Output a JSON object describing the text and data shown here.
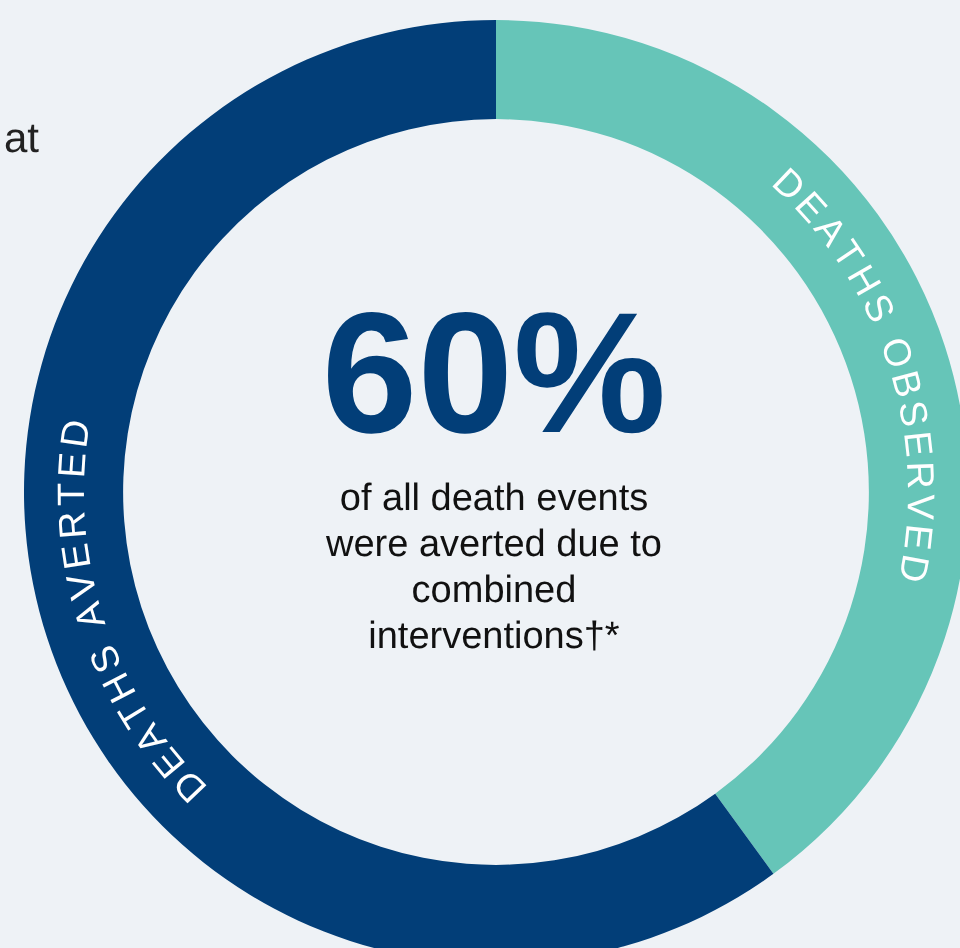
{
  "chart_data": {
    "type": "donut",
    "title": "60%",
    "subtitle": "of all death events were averted due to combined interventions†*",
    "categories": [
      "DEATHS OBSERVED",
      "DEATHS AVERTED"
    ],
    "values": [
      40,
      60
    ],
    "colors": [
      "#66c5b8",
      "#023e78"
    ],
    "annotations": [
      "at"
    ],
    "legend": false
  }
}
